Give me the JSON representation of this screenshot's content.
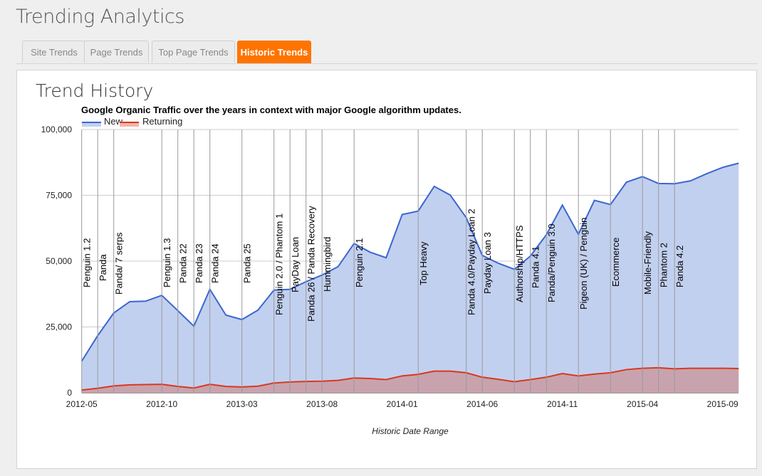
{
  "app": {
    "title": "Trending Analytics"
  },
  "tabs": [
    {
      "label": "Site Trends",
      "active": false
    },
    {
      "label": "Page Trends",
      "active": false
    },
    {
      "label": "Top Page Trends",
      "active": false
    },
    {
      "label": "Historic Trends",
      "active": true
    }
  ],
  "panel": {
    "title": "Trend History"
  },
  "colors": {
    "accent": "#ff7400",
    "new_line": "#3b66d1",
    "new_fill": "#c2d0ef",
    "ret_line": "#d9381e",
    "ret_fill": "#c8a0aa"
  },
  "chart_data": {
    "type": "area",
    "title": "Google Organic Traffic over the years in context with major Google algorithm updates.",
    "xlabel": "Historic Date Range",
    "ylabel": "",
    "ylim": [
      0,
      100000
    ],
    "yticks": [
      "0",
      "25,000",
      "50,000",
      "75,000",
      "100,000"
    ],
    "ytick_values": [
      0,
      25000,
      50000,
      75000,
      100000
    ],
    "legend": {
      "placement": "top-left",
      "entries": [
        "New",
        "Returning"
      ]
    },
    "x": [
      "2012-05",
      "2012-06",
      "2012-07",
      "2012-08",
      "2012-09",
      "2012-10",
      "2012-11",
      "2012-12",
      "2013-01",
      "2013-02",
      "2013-03",
      "2013-04",
      "2013-05",
      "2013-06",
      "2013-07",
      "2013-08",
      "2013-09",
      "2013-10",
      "2013-11",
      "2013-12",
      "2014-01",
      "2014-02",
      "2014-03",
      "2014-04",
      "2014-05",
      "2014-06",
      "2014-07",
      "2014-08",
      "2014-09",
      "2014-10",
      "2014-11",
      "2014-12",
      "2015-01",
      "2015-02",
      "2015-03",
      "2015-04",
      "2015-05",
      "2015-06",
      "2015-07",
      "2015-08",
      "2015-09",
      "2015-10"
    ],
    "xtick_every": 5,
    "series": [
      {
        "name": "New",
        "values": [
          12000,
          21700,
          30300,
          34600,
          34800,
          37000,
          31200,
          25300,
          39300,
          29500,
          27800,
          31400,
          39000,
          39300,
          42200,
          44700,
          47900,
          56700,
          53400,
          51300,
          67700,
          69000,
          78400,
          75100,
          66500,
          52200,
          49200,
          46900,
          51900,
          60000,
          71300,
          60200,
          73100,
          71500,
          80000,
          82100,
          79500,
          79400,
          80500,
          83200,
          85600,
          87200
        ]
      },
      {
        "name": "Returning",
        "values": [
          1000,
          1700,
          2600,
          3000,
          3100,
          3200,
          2400,
          1800,
          3200,
          2400,
          2200,
          2500,
          3700,
          4100,
          4300,
          4400,
          4700,
          5600,
          5400,
          5000,
          6400,
          7000,
          8200,
          8200,
          7600,
          5900,
          5100,
          4200,
          5000,
          5900,
          7300,
          6400,
          7100,
          7600,
          8800,
          9300,
          9500,
          9100,
          9300,
          9300,
          9300,
          9200
        ]
      }
    ],
    "annotations": [
      {
        "x": "2012-05",
        "label": "Penguin 1.2"
      },
      {
        "x": "2012-06",
        "label": "Panda"
      },
      {
        "x": "2012-07",
        "label": "Panda/ 7 serps"
      },
      {
        "x": "2012-10",
        "label": "Penguin 1.3"
      },
      {
        "x": "2012-11",
        "label": "Panda 22"
      },
      {
        "x": "2012-12",
        "label": "Panda 23"
      },
      {
        "x": "2013-01",
        "label": "Panda 24"
      },
      {
        "x": "2013-03",
        "label": "Panda 25"
      },
      {
        "x": "2013-05",
        "label": "Penguin 2.0 / Phantom 1"
      },
      {
        "x": "2013-06",
        "label": "PayDay Loan"
      },
      {
        "x": "2013-07",
        "label": "Panda 26 / Panda Recovery"
      },
      {
        "x": "2013-08",
        "label": "Hummingbird"
      },
      {
        "x": "2013-10",
        "label": "Penguin 2.1"
      },
      {
        "x": "2014-02",
        "label": "Top Heavy"
      },
      {
        "x": "2014-05",
        "label": "Panda 4.0/Payday Loan 2"
      },
      {
        "x": "2014-06",
        "label": "Payday Loan 3"
      },
      {
        "x": "2014-08",
        "label": "Authorship/HTTPS"
      },
      {
        "x": "2014-09",
        "label": "Panda 4.1"
      },
      {
        "x": "2014-10",
        "label": "Panda/Penguin 3.0"
      },
      {
        "x": "2014-12",
        "label": "Pigeon (UK) / Penguin"
      },
      {
        "x": "2015-02",
        "label": "Ecommerce"
      },
      {
        "x": "2015-04",
        "label": "Mobile-Friendly"
      },
      {
        "x": "2015-05",
        "label": "Phantom 2"
      },
      {
        "x": "2015-06",
        "label": "Panda 4.2"
      }
    ]
  }
}
